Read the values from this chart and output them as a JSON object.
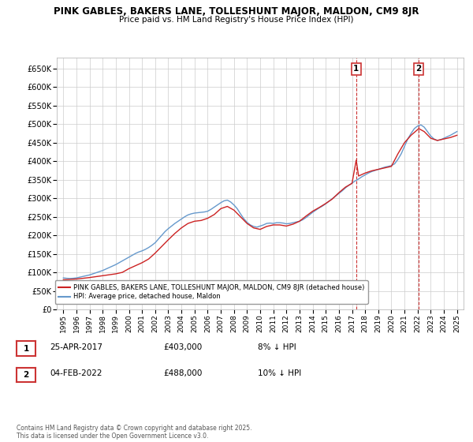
{
  "title": "PINK GABLES, BAKERS LANE, TOLLESHUNT MAJOR, MALDON, CM9 8JR",
  "subtitle": "Price paid vs. HM Land Registry's House Price Index (HPI)",
  "ylabel_ticks": [
    0,
    50000,
    100000,
    150000,
    200000,
    250000,
    300000,
    350000,
    400000,
    450000,
    500000,
    550000,
    600000,
    650000
  ],
  "ylim": [
    0,
    680000
  ],
  "xlim": [
    1994.5,
    2025.5
  ],
  "xticks": [
    1995,
    1996,
    1997,
    1998,
    1999,
    2000,
    2001,
    2002,
    2003,
    2004,
    2005,
    2006,
    2007,
    2008,
    2009,
    2010,
    2011,
    2012,
    2013,
    2014,
    2015,
    2016,
    2017,
    2018,
    2019,
    2020,
    2021,
    2022,
    2023,
    2024,
    2025
  ],
  "hpi_color": "#6699cc",
  "price_color": "#cc2222",
  "vline_color": "#cc3333",
  "grid_color": "#cccccc",
  "background_color": "#ffffff",
  "legend_box_color": "#ffffff",
  "legend_border_color": "#999999",
  "marker1_x": 2017.32,
  "marker1_y": 403000,
  "marker1_label": "1",
  "marker1_date": "25-APR-2017",
  "marker1_price": "£403,000",
  "marker1_hpi": "8% ↓ HPI",
  "marker2_x": 2022.09,
  "marker2_y": 488000,
  "marker2_label": "2",
  "marker2_date": "04-FEB-2022",
  "marker2_price": "£488,000",
  "marker2_hpi": "10% ↓ HPI",
  "legend_line1": "PINK GABLES, BAKERS LANE, TOLLESHUNT MAJOR, MALDON, CM9 8JR (detached house)",
  "legend_line2": "HPI: Average price, detached house, Maldon",
  "footer": "Contains HM Land Registry data © Crown copyright and database right 2025.\nThis data is licensed under the Open Government Licence v3.0.",
  "hpi_x": [
    1995.0,
    1995.25,
    1995.5,
    1995.75,
    1996.0,
    1996.25,
    1996.5,
    1996.75,
    1997.0,
    1997.25,
    1997.5,
    1997.75,
    1998.0,
    1998.25,
    1998.5,
    1998.75,
    1999.0,
    1999.25,
    1999.5,
    1999.75,
    2000.0,
    2000.25,
    2000.5,
    2000.75,
    2001.0,
    2001.25,
    2001.5,
    2001.75,
    2002.0,
    2002.25,
    2002.5,
    2002.75,
    2003.0,
    2003.25,
    2003.5,
    2003.75,
    2004.0,
    2004.25,
    2004.5,
    2004.75,
    2005.0,
    2005.25,
    2005.5,
    2005.75,
    2006.0,
    2006.25,
    2006.5,
    2006.75,
    2007.0,
    2007.25,
    2007.5,
    2007.75,
    2008.0,
    2008.25,
    2008.5,
    2008.75,
    2009.0,
    2009.25,
    2009.5,
    2009.75,
    2010.0,
    2010.25,
    2010.5,
    2010.75,
    2011.0,
    2011.25,
    2011.5,
    2011.75,
    2012.0,
    2012.25,
    2012.5,
    2012.75,
    2013.0,
    2013.25,
    2013.5,
    2013.75,
    2014.0,
    2014.25,
    2014.5,
    2014.75,
    2015.0,
    2015.25,
    2015.5,
    2015.75,
    2016.0,
    2016.25,
    2016.5,
    2016.75,
    2017.0,
    2017.25,
    2017.5,
    2017.75,
    2018.0,
    2018.25,
    2018.5,
    2018.75,
    2019.0,
    2019.25,
    2019.5,
    2019.75,
    2020.0,
    2020.25,
    2020.5,
    2020.75,
    2021.0,
    2021.25,
    2021.5,
    2021.75,
    2022.0,
    2022.25,
    2022.5,
    2022.75,
    2023.0,
    2023.25,
    2023.5,
    2023.75,
    2024.0,
    2024.25,
    2024.5,
    2024.75,
    2025.0
  ],
  "hpi_y": [
    85000,
    84000,
    83500,
    84000,
    85000,
    87000,
    89000,
    91000,
    93000,
    96000,
    99000,
    102000,
    105000,
    109000,
    113000,
    117000,
    121000,
    126000,
    131000,
    136000,
    141000,
    146000,
    151000,
    155000,
    158000,
    162000,
    167000,
    173000,
    180000,
    190000,
    200000,
    210000,
    218000,
    225000,
    232000,
    238000,
    244000,
    250000,
    255000,
    258000,
    260000,
    261000,
    262000,
    263000,
    265000,
    270000,
    276000,
    282000,
    288000,
    293000,
    295000,
    290000,
    282000,
    272000,
    258000,
    245000,
    235000,
    228000,
    224000,
    222000,
    225000,
    228000,
    232000,
    233000,
    232000,
    234000,
    234000,
    233000,
    231000,
    232000,
    234000,
    236000,
    238000,
    242000,
    248000,
    255000,
    262000,
    268000,
    274000,
    279000,
    285000,
    292000,
    299000,
    306000,
    313000,
    320000,
    328000,
    335000,
    341000,
    347000,
    352000,
    358000,
    363000,
    368000,
    372000,
    375000,
    378000,
    381000,
    384000,
    386000,
    388000,
    393000,
    405000,
    420000,
    440000,
    460000,
    475000,
    488000,
    495000,
    498000,
    492000,
    480000,
    468000,
    460000,
    456000,
    458000,
    462000,
    466000,
    470000,
    475000,
    480000
  ],
  "price_x": [
    1995.0,
    1996.0,
    1997.0,
    1998.0,
    1999.0,
    1999.5,
    2000.0,
    2000.5,
    2001.0,
    2001.5,
    2002.0,
    2002.5,
    2003.0,
    2003.5,
    2004.0,
    2004.5,
    2005.0,
    2005.5,
    2006.0,
    2006.5,
    2007.0,
    2007.5,
    2008.0,
    2008.5,
    2009.0,
    2009.5,
    2010.0,
    2010.5,
    2011.0,
    2011.5,
    2012.0,
    2012.5,
    2013.0,
    2013.5,
    2014.0,
    2014.5,
    2015.0,
    2015.5,
    2016.0,
    2016.5,
    2017.0,
    2017.32,
    2017.5,
    2018.0,
    2018.5,
    2019.0,
    2019.5,
    2020.0,
    2020.5,
    2021.0,
    2021.5,
    2022.09,
    2022.5,
    2023.0,
    2023.5,
    2024.0,
    2024.5,
    2025.0
  ],
  "price_y": [
    80000,
    82000,
    86000,
    91000,
    96000,
    100000,
    110000,
    118000,
    126000,
    136000,
    152000,
    170000,
    188000,
    205000,
    220000,
    232000,
    238000,
    240000,
    246000,
    256000,
    272000,
    278000,
    268000,
    250000,
    232000,
    220000,
    216000,
    224000,
    228000,
    228000,
    225000,
    230000,
    238000,
    252000,
    265000,
    275000,
    286000,
    298000,
    315000,
    330000,
    340000,
    403000,
    360000,
    368000,
    374000,
    378000,
    382000,
    386000,
    420000,
    450000,
    470000,
    488000,
    480000,
    462000,
    456000,
    460000,
    464000,
    470000
  ]
}
